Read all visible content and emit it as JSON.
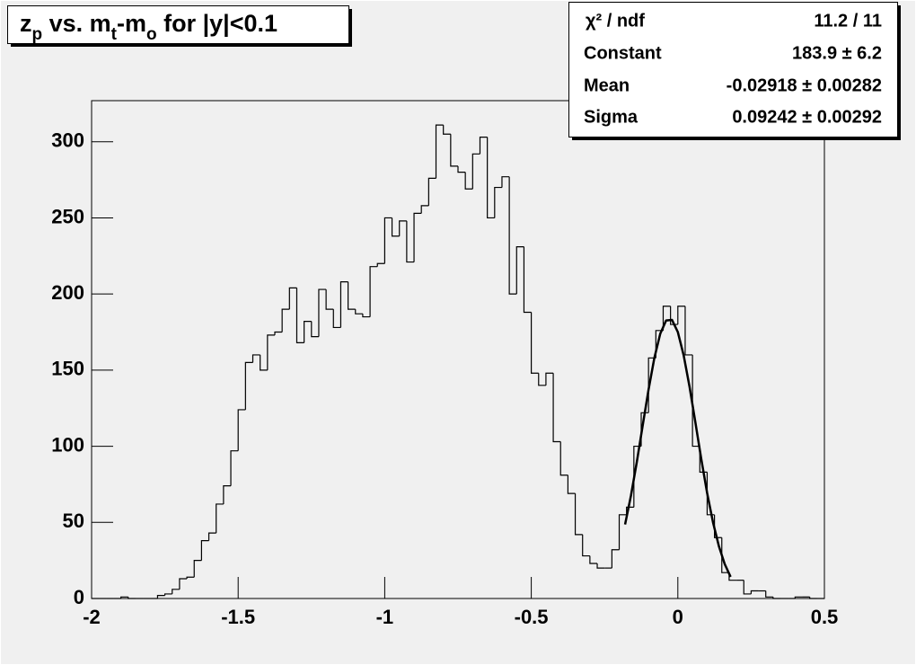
{
  "chart_data": {
    "type": "histogram",
    "title": [
      "z",
      "p",
      " vs. m",
      "t",
      "-m",
      "o",
      " for |y|<0.1"
    ],
    "bins": [
      -2,
      -1.975,
      -1.95,
      -1.925,
      -1.9,
      -1.875,
      -1.85,
      -1.825,
      -1.8,
      -1.775,
      -1.75,
      -1.725,
      -1.7,
      -1.675,
      -1.65,
      -1.625,
      -1.6,
      -1.575,
      -1.55,
      -1.525,
      -1.5,
      -1.475,
      -1.45,
      -1.425,
      -1.4,
      -1.375,
      -1.35,
      -1.325,
      -1.3,
      -1.275,
      -1.25,
      -1.225,
      -1.2,
      -1.175,
      -1.15,
      -1.125,
      -1.1,
      -1.075,
      -1.05,
      -1.025,
      -1,
      -0.975,
      -0.95,
      -0.925,
      -0.9,
      -0.875,
      -0.85,
      -0.825,
      -0.8,
      -0.775,
      -0.75,
      -0.725,
      -0.7,
      -0.675,
      -0.65,
      -0.625,
      -0.6,
      -0.575,
      -0.55,
      -0.525,
      -0.5,
      -0.475,
      -0.45,
      -0.425,
      -0.4,
      -0.375,
      -0.35,
      -0.325,
      -0.3,
      -0.275,
      -0.25,
      -0.225,
      -0.2,
      -0.175,
      -0.15,
      -0.125,
      -0.1,
      -0.075,
      -0.05,
      -0.025,
      0,
      0.025,
      0.05,
      0.075,
      0.1,
      0.125,
      0.15,
      0.175,
      0.2,
      0.225,
      0.25,
      0.275,
      0.3,
      0.325,
      0.35,
      0.375,
      0.4,
      0.425,
      0.45,
      0.475,
      0.5
    ],
    "values": [
      0,
      0,
      0,
      0,
      1,
      0,
      0,
      0,
      0,
      2,
      3,
      6,
      13,
      14,
      25,
      38,
      43,
      62,
      74,
      97,
      124,
      155,
      160,
      150,
      173,
      175,
      190,
      204,
      168,
      182,
      172,
      203,
      190,
      178,
      208,
      190,
      187,
      185,
      218,
      220,
      250,
      238,
      248,
      221,
      253,
      258,
      276,
      311,
      305,
      284,
      280,
      269,
      292,
      303,
      250,
      270,
      277,
      200,
      231,
      188,
      148,
      140,
      148,
      103,
      81,
      69,
      42,
      28,
      23,
      20,
      20,
      32,
      55,
      60,
      100,
      122,
      158,
      176,
      192,
      180,
      192,
      160,
      100,
      83,
      55,
      40,
      17,
      12,
      12,
      3,
      5,
      5,
      1,
      0,
      0,
      0,
      1,
      1,
      0,
      0
    ],
    "color": "#000000",
    "fit": {
      "x": [
        -0.18,
        -0.16,
        -0.14,
        -0.12,
        -0.1,
        -0.08,
        -0.06,
        -0.04,
        -0.02,
        0,
        0.02,
        0.04,
        0.06,
        0.08,
        0.1,
        0.12,
        0.14,
        0.16,
        0.18
      ],
      "values": [
        48.6,
        67.5,
        89.6,
        113.5,
        137.1,
        158.1,
        173.9,
        182.6,
        183.0,
        175.0,
        159.6,
        139.0,
        115.5,
        91.5,
        69.2,
        50.0,
        34.4,
        22.6,
        14.2
      ],
      "color": "#000000"
    },
    "xlim": [
      -2,
      0.5
    ],
    "xticks": [
      -2,
      -1.5,
      -1,
      -0.5,
      0,
      0.5
    ],
    "ylim": [
      0,
      327
    ],
    "yticks": [
      0,
      50,
      100,
      150,
      200,
      250,
      300
    ],
    "stats": [
      [
        "χ² / ndf",
        "11.2 / 11"
      ],
      [
        "Constant",
        "183.9 ± 6.2"
      ],
      [
        "Mean",
        "-0.02918 ± 0.00282"
      ],
      [
        "Sigma",
        "0.09242 ± 0.00292"
      ]
    ]
  }
}
